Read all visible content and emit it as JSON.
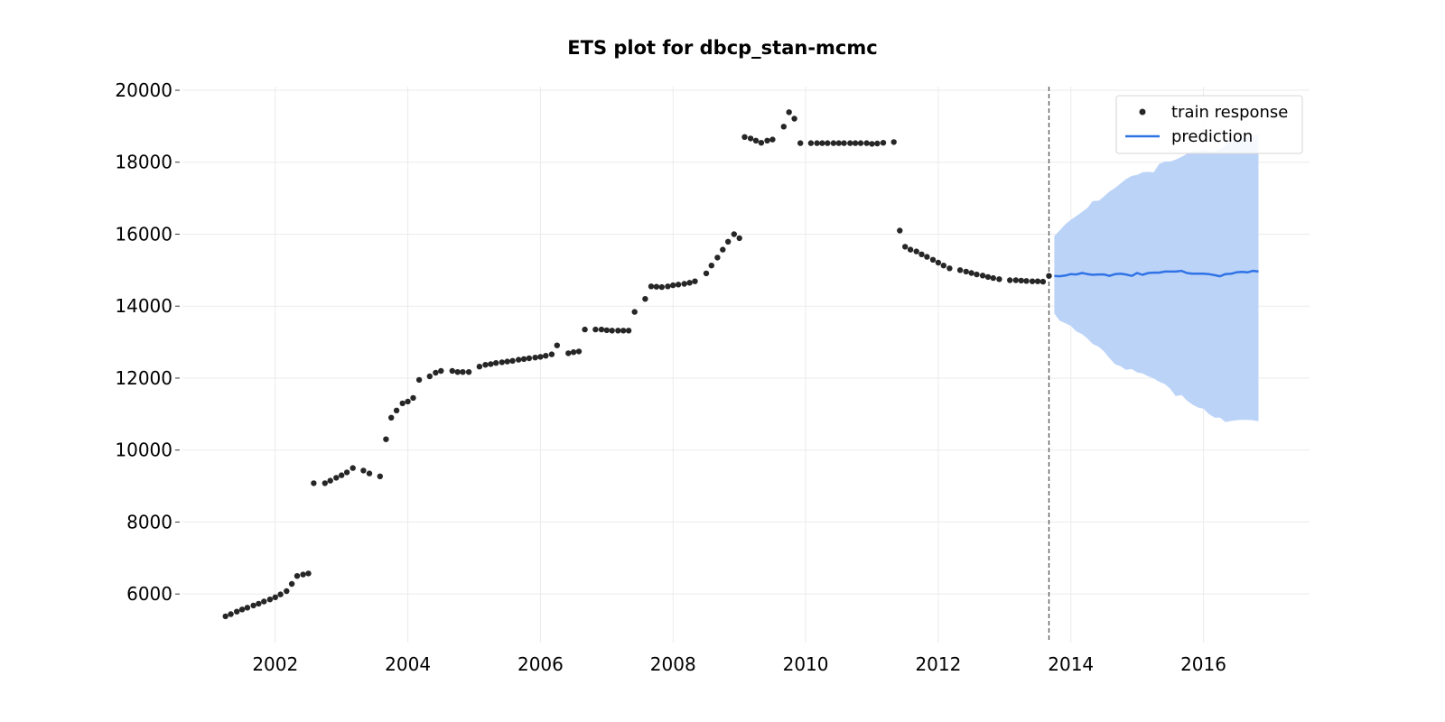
{
  "chart_data": {
    "type": "scatter",
    "title": "ETS plot for dbcp_stan-mcmc",
    "xlabel": "",
    "ylabel": "",
    "xlim": [
      2000.6,
      2017.6
    ],
    "ylim": [
      4650,
      20100
    ],
    "x_ticks": [
      2002,
      2004,
      2006,
      2008,
      2010,
      2012,
      2014,
      2016
    ],
    "x_tick_labels": [
      "2002",
      "2004",
      "2006",
      "2008",
      "2010",
      "2012",
      "2014",
      "2016"
    ],
    "y_ticks": [
      6000,
      8000,
      10000,
      12000,
      14000,
      16000,
      18000,
      20000
    ],
    "y_tick_labels": [
      "6000",
      "8000",
      "10000",
      "12000",
      "14000",
      "16000",
      "18000",
      "20000"
    ],
    "grid": true,
    "legend_position": "top-right",
    "train_end": 2013.67,
    "colors": {
      "train": "#262626",
      "prediction": "#2f73e6",
      "band": "#bcd3f8",
      "divider": "#555555",
      "grid": "#ebebeb"
    },
    "series": [
      {
        "name": "train response",
        "kind": "scatter",
        "x": [
          2001.25,
          2001.33,
          2001.42,
          2001.5,
          2001.58,
          2001.67,
          2001.75,
          2001.83,
          2001.92,
          2002.0,
          2002.08,
          2002.17,
          2002.25,
          2002.33,
          2002.42,
          2002.5,
          2002.58,
          2002.75,
          2002.83,
          2002.92,
          2003.0,
          2003.08,
          2003.17,
          2003.33,
          2003.42,
          2003.58,
          2003.67,
          2003.75,
          2003.83,
          2003.92,
          2004.0,
          2004.08,
          2004.17,
          2004.33,
          2004.42,
          2004.5,
          2004.67,
          2004.75,
          2004.83,
          2004.92,
          2005.08,
          2005.17,
          2005.25,
          2005.33,
          2005.42,
          2005.5,
          2005.58,
          2005.67,
          2005.75,
          2005.83,
          2005.92,
          2006.0,
          2006.08,
          2006.17,
          2006.25,
          2006.42,
          2006.5,
          2006.58,
          2006.67,
          2006.83,
          2006.92,
          2007.0,
          2007.08,
          2007.17,
          2007.25,
          2007.33,
          2007.42,
          2007.58,
          2007.67,
          2007.75,
          2007.83,
          2007.92,
          2008.0,
          2008.08,
          2008.17,
          2008.25,
          2008.33,
          2008.5,
          2008.58,
          2008.67,
          2008.75,
          2008.83,
          2008.92,
          2009.0,
          2009.08,
          2009.17,
          2009.25,
          2009.33,
          2009.42,
          2009.5,
          2009.67,
          2009.75,
          2009.83,
          2009.92,
          2010.08,
          2010.17,
          2010.25,
          2010.33,
          2010.42,
          2010.5,
          2010.58,
          2010.67,
          2010.75,
          2010.83,
          2010.92,
          2011.0,
          2011.08,
          2011.17,
          2011.33,
          2011.42,
          2011.5,
          2011.58,
          2011.67,
          2011.75,
          2011.83,
          2011.92,
          2012.0,
          2012.08,
          2012.17,
          2012.33,
          2012.42,
          2012.5,
          2012.58,
          2012.67,
          2012.75,
          2012.83,
          2012.92,
          2013.08,
          2013.17,
          2013.25,
          2013.33,
          2013.42,
          2013.5,
          2013.58,
          2013.67
        ],
        "y": [
          5380,
          5440,
          5510,
          5570,
          5620,
          5680,
          5730,
          5790,
          5850,
          5910,
          5990,
          6080,
          6280,
          6500,
          6540,
          6570,
          9080,
          9080,
          9150,
          9230,
          9300,
          9380,
          9500,
          9430,
          9350,
          9270,
          10300,
          10900,
          11100,
          11300,
          11350,
          11450,
          11950,
          12050,
          12150,
          12200,
          12200,
          12170,
          12170,
          12170,
          12320,
          12370,
          12390,
          12420,
          12440,
          12460,
          12480,
          12510,
          12530,
          12550,
          12570,
          12590,
          12620,
          12660,
          12910,
          12690,
          12720,
          12740,
          13350,
          13350,
          13350,
          13330,
          13320,
          13320,
          13320,
          13320,
          13840,
          14200,
          14550,
          14540,
          14530,
          14550,
          14580,
          14600,
          14620,
          14650,
          14690,
          14910,
          15130,
          15350,
          15570,
          15790,
          16000,
          15890,
          18700,
          18660,
          18600,
          18540,
          18600,
          18630,
          18990,
          19390,
          19210,
          18530,
          18530,
          18530,
          18530,
          18530,
          18530,
          18530,
          18530,
          18530,
          18530,
          18530,
          18530,
          18510,
          18520,
          18540,
          18560,
          16100,
          15650,
          15570,
          15520,
          15440,
          15370,
          15290,
          15210,
          15130,
          15050,
          15000,
          14960,
          14920,
          14880,
          14850,
          14810,
          14780,
          14750,
          14720,
          14720,
          14710,
          14700,
          14690,
          14690,
          14680,
          14840
        ]
      },
      {
        "name": "prediction",
        "kind": "line",
        "x": [
          2013.75,
          2013.83,
          2013.92,
          2014.0,
          2014.08,
          2014.17,
          2014.25,
          2014.33,
          2014.42,
          2014.5,
          2014.58,
          2014.67,
          2014.75,
          2014.83,
          2014.92,
          2015.0,
          2015.08,
          2015.17,
          2015.25,
          2015.33,
          2015.42,
          2015.5,
          2015.58,
          2015.67,
          2015.75,
          2015.83,
          2015.92,
          2016.0,
          2016.08,
          2016.17,
          2016.25,
          2016.33,
          2016.42,
          2016.5,
          2016.58,
          2016.67,
          2016.75,
          2016.83
        ],
        "y": [
          14840,
          14830,
          14850,
          14890,
          14880,
          14920,
          14890,
          14870,
          14880,
          14880,
          14840,
          14890,
          14900,
          14880,
          14840,
          14920,
          14870,
          14920,
          14930,
          14930,
          14960,
          14960,
          14960,
          14980,
          14920,
          14900,
          14900,
          14900,
          14890,
          14860,
          14830,
          14890,
          14900,
          14940,
          14950,
          14940,
          14980,
          14960
        ]
      }
    ],
    "band": {
      "x": [
        2013.75,
        2013.83,
        2013.92,
        2014.0,
        2014.08,
        2014.17,
        2014.25,
        2014.33,
        2014.42,
        2014.5,
        2014.58,
        2014.67,
        2014.75,
        2014.83,
        2014.92,
        2015.0,
        2015.08,
        2015.17,
        2015.25,
        2015.33,
        2015.42,
        2015.5,
        2015.58,
        2015.67,
        2015.75,
        2015.83,
        2015.92,
        2016.0,
        2016.08,
        2016.17,
        2016.25,
        2016.33,
        2016.42,
        2016.5,
        2016.58,
        2016.67,
        2016.75,
        2016.83
      ],
      "upper": [
        15950,
        16100,
        16280,
        16400,
        16500,
        16620,
        16730,
        16920,
        16930,
        17050,
        17180,
        17290,
        17410,
        17530,
        17620,
        17650,
        17720,
        17730,
        17720,
        17950,
        18020,
        18020,
        18070,
        18150,
        18230,
        18300,
        18300,
        18330,
        18300,
        18300,
        18350,
        18480,
        18590,
        18620,
        18650,
        18690,
        18760,
        18760
      ],
      "lower": [
        13800,
        13600,
        13520,
        13450,
        13300,
        13220,
        13100,
        12950,
        12870,
        12740,
        12560,
        12380,
        12330,
        12230,
        12250,
        12160,
        12130,
        12050,
        11990,
        11900,
        11830,
        11700,
        11500,
        11530,
        11380,
        11270,
        11180,
        11150,
        11000,
        10900,
        10900,
        10780,
        10810,
        10830,
        10840,
        10840,
        10830,
        10800
      ]
    }
  }
}
